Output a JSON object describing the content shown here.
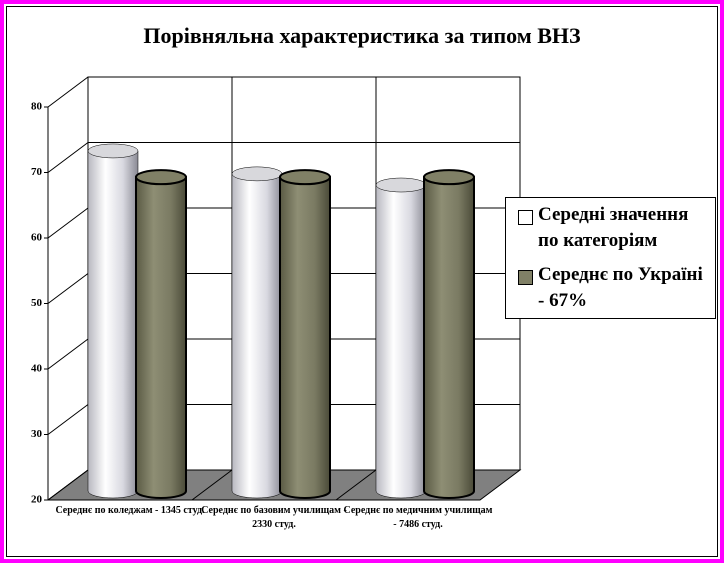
{
  "chart_data": {
    "type": "bar3d-cylinder",
    "title": "Порівняльна характеристика за типом ВНЗ",
    "categories": [
      "Середнє по коледжам - 1345 студ.",
      "Середнє по базовим училищам - 2330 студ.",
      "Середнє по медичним училищам - 7486 студ."
    ],
    "series": [
      {
        "name": "Середні значення по категоріям",
        "color": "#ffffff",
        "values": [
          71,
          67.5,
          65.8
        ]
      },
      {
        "name": "Середнє по Україні - 67%",
        "color": "#808066",
        "values": [
          67,
          67,
          67
        ]
      }
    ],
    "ylim": [
      20,
      80
    ],
    "yticks": [
      20,
      30,
      40,
      50,
      60,
      70,
      80
    ],
    "grid": true,
    "legend": "right"
  }
}
